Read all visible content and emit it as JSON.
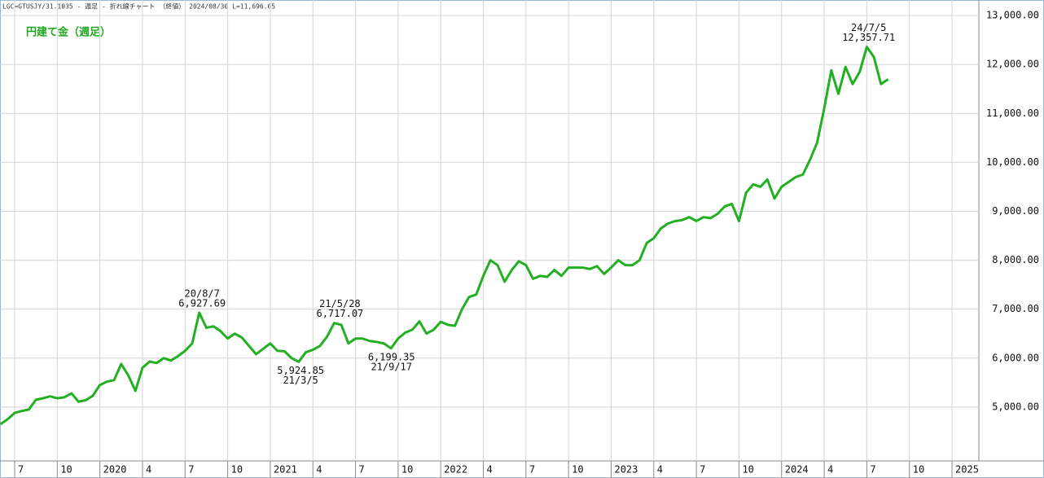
{
  "chart_data": {
    "type": "line",
    "header": "LGC=GTUSJY/31.1035 - 週足 - 折れ線チャート （終値） 2024/08/30 L=11,696.65",
    "title": "円建て金（週足）",
    "color": "#22b022",
    "grid": true,
    "categories": [
      null,
      null,
      "7",
      null,
      null,
      null,
      null,
      null,
      "10",
      null,
      null,
      null,
      null,
      null,
      "2020",
      null,
      null,
      null,
      null,
      null,
      "4",
      null,
      null,
      null,
      null,
      null,
      "7",
      null,
      null,
      null,
      null,
      null,
      "10",
      null,
      null,
      null,
      null,
      null,
      "2021",
      null,
      null,
      null,
      null,
      null,
      "4",
      null,
      null,
      null,
      null,
      null,
      "7",
      null,
      null,
      null,
      null,
      null,
      "10",
      null,
      null,
      null,
      null,
      null,
      "2022",
      null,
      null,
      null,
      null,
      null,
      "4",
      null,
      null,
      null,
      null,
      null,
      "7",
      null,
      null,
      null,
      null,
      null,
      "10",
      null,
      null,
      null,
      null,
      null,
      "2023",
      null,
      null,
      null,
      null,
      null,
      "4",
      null,
      null,
      null,
      null,
      null,
      "7",
      null,
      null,
      null,
      null,
      null,
      "10",
      null,
      null,
      null,
      null,
      null,
      "2024",
      null,
      null,
      null,
      null,
      null,
      "4",
      null,
      null,
      null,
      null,
      null,
      "7",
      null,
      null,
      null,
      null,
      null,
      "10",
      null,
      null,
      null,
      null,
      null,
      "2025",
      null,
      null,
      null
    ],
    "values": [
      4650,
      4750,
      4880,
      4920,
      4950,
      5150,
      5180,
      5220,
      5180,
      5200,
      5280,
      5110,
      5140,
      5230,
      5450,
      5520,
      5550,
      5880,
      5650,
      5330,
      5800,
      5930,
      5900,
      6000,
      5950,
      6040,
      6150,
      6300,
      6927.69,
      6620,
      6650,
      6550,
      6400,
      6500,
      6420,
      6250,
      6080,
      6190,
      6300,
      6150,
      6140,
      6000,
      5924.85,
      6120,
      6170,
      6250,
      6440,
      6717.07,
      6680,
      6300,
      6400,
      6400,
      6350,
      6330,
      6300,
      6199.35,
      6400,
      6520,
      6580,
      6750,
      6500,
      6580,
      6740,
      6680,
      6660,
      7000,
      7250,
      7300,
      7680,
      8000,
      7900,
      7560,
      7800,
      7980,
      7900,
      7620,
      7680,
      7660,
      7800,
      7680,
      7850,
      7850,
      7850,
      7820,
      7880,
      7720,
      7850,
      8000,
      7900,
      7900,
      8000,
      8350,
      8450,
      8650,
      8750,
      8800,
      8820,
      8880,
      8800,
      8880,
      8860,
      8950,
      9100,
      9150,
      8800,
      9380,
      9550,
      9500,
      9650,
      9260,
      9500,
      9600,
      9700,
      9750,
      10050,
      10400,
      11100,
      11880,
      11400,
      11950,
      11600,
      11850,
      12357.71,
      12150,
      11600,
      11696.65,
      null,
      null,
      null,
      null,
      null,
      null,
      null,
      null,
      null,
      null,
      null,
      null
    ],
    "ylim": [
      3900,
      13317
    ],
    "yticks": [
      {
        "value": 5000,
        "label": "5,000.00"
      },
      {
        "value": 6000,
        "label": "6,000.00"
      },
      {
        "value": 7000,
        "label": "7,000.00"
      },
      {
        "value": 8000,
        "label": "8,000.00"
      },
      {
        "value": 9000,
        "label": "9,000.00"
      },
      {
        "value": 10000,
        "label": "10,000.00"
      },
      {
        "value": 11000,
        "label": "11,000.00"
      },
      {
        "value": 12000,
        "label": "12,000.00"
      },
      {
        "value": 13000,
        "label": "13,000.00"
      }
    ],
    "annotations": [
      {
        "date": "20/8/7",
        "value": 6927.69,
        "label": "6,927.69"
      },
      {
        "date": "21/3/5",
        "value": 5924.85,
        "label": "5,924.85"
      },
      {
        "date": "21/5/28",
        "value": 6717.07,
        "label": "6,717.07"
      },
      {
        "date": "21/9/17",
        "value": 6199.35,
        "label": "6,199.35"
      },
      {
        "date": "24/7/5",
        "value": 12357.71,
        "label": "12,357.71"
      }
    ]
  }
}
